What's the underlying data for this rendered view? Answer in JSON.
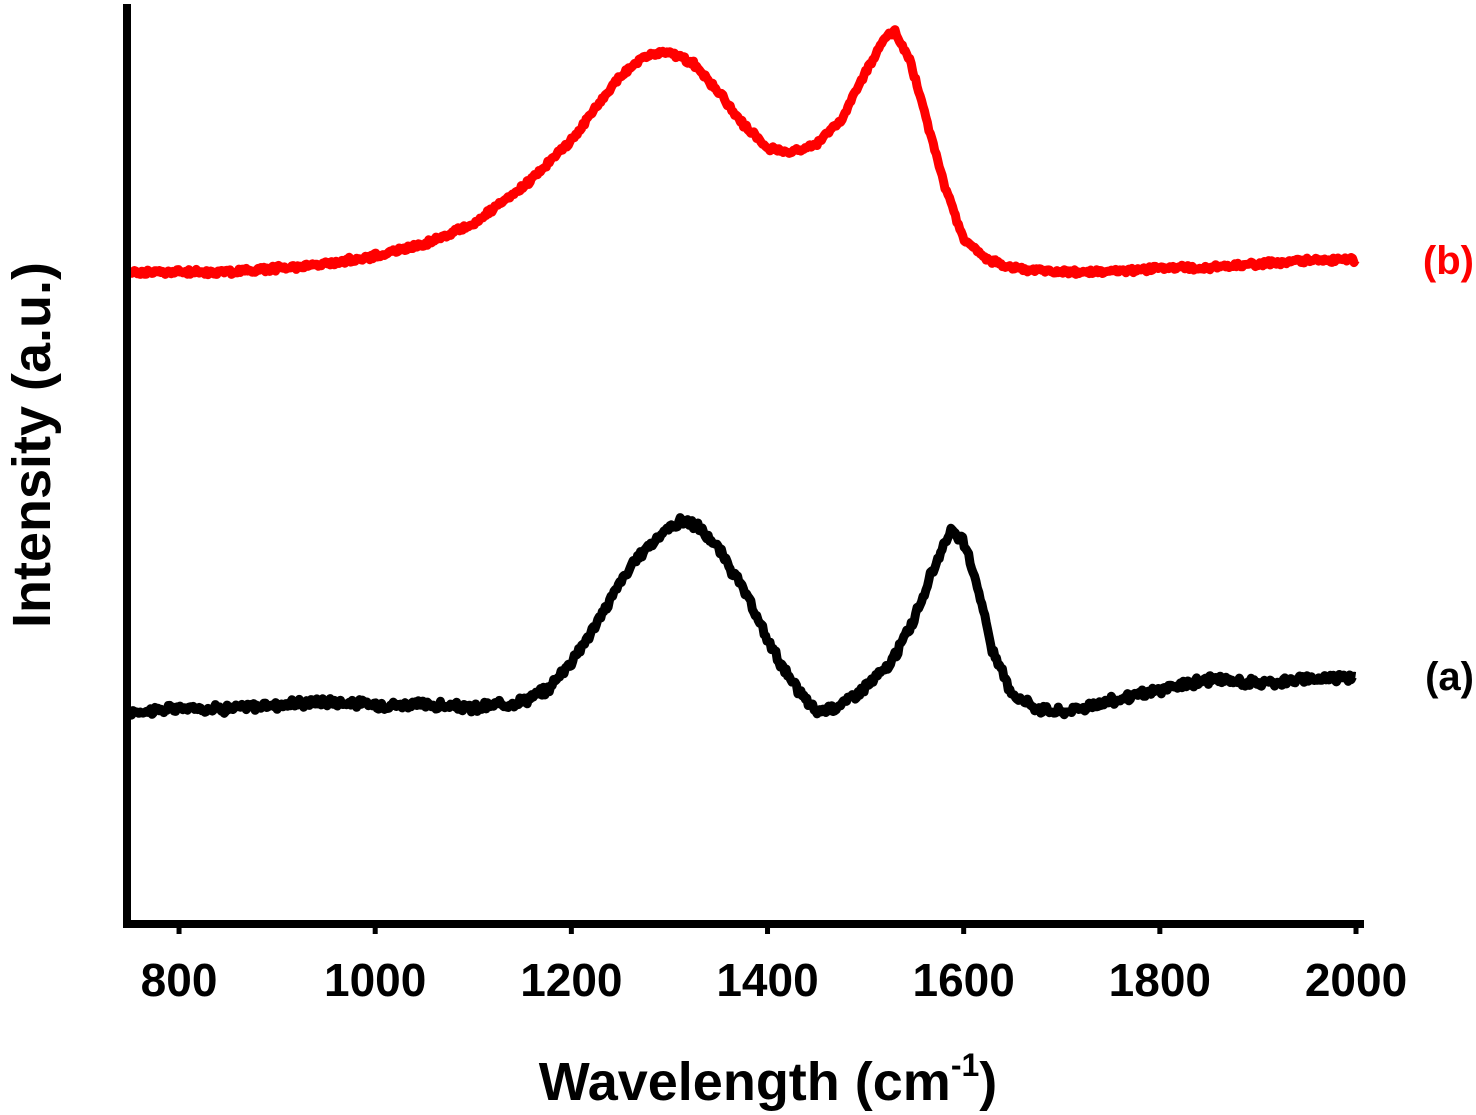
{
  "chart_data": {
    "type": "line",
    "xlabel": "Wavelength (cm",
    "xlabel_superscript": "-1",
    "xlabel_suffix": ")",
    "ylabel": "Intensity (a.u.)",
    "xlim": [
      750,
      2000
    ],
    "x_ticks": [
      "800",
      "1000",
      "1200",
      "1400",
      "1600",
      "1800",
      "2000"
    ],
    "y_ticks_shown": false,
    "grid": false,
    "series": [
      {
        "name": "(a)",
        "color": "#000000",
        "baseline": 0,
        "noise": 0.018,
        "x": [
          750,
          800,
          850,
          900,
          950,
          1000,
          1050,
          1100,
          1150,
          1175,
          1200,
          1225,
          1250,
          1275,
          1300,
          1315,
          1330,
          1350,
          1375,
          1400,
          1425,
          1450,
          1475,
          1500,
          1525,
          1550,
          1570,
          1585,
          1600,
          1615,
          1630,
          1650,
          1675,
          1700,
          1750,
          1800,
          1850,
          1900,
          1950,
          2000
        ],
        "y": [
          0.0,
          0.01,
          0.01,
          0.02,
          0.03,
          0.02,
          0.02,
          0.01,
          0.03,
          0.06,
          0.14,
          0.24,
          0.36,
          0.45,
          0.51,
          0.53,
          0.51,
          0.45,
          0.34,
          0.2,
          0.08,
          0.0,
          0.02,
          0.07,
          0.13,
          0.26,
          0.4,
          0.5,
          0.47,
          0.34,
          0.16,
          0.05,
          0.01,
          0.0,
          0.03,
          0.06,
          0.09,
          0.08,
          0.09,
          0.1
        ]
      },
      {
        "name": "(b)",
        "color": "#ff0000",
        "baseline": 1,
        "noise": 0.01,
        "x": [
          750,
          800,
          850,
          900,
          950,
          1000,
          1050,
          1100,
          1150,
          1200,
          1225,
          1250,
          1275,
          1300,
          1325,
          1350,
          1375,
          1400,
          1425,
          1450,
          1475,
          1500,
          1520,
          1530,
          1545,
          1560,
          1580,
          1600,
          1625,
          1650,
          1700,
          1750,
          1800,
          1850,
          1900,
          1950,
          2000
        ],
        "y": [
          0.0,
          0.0,
          0.0,
          0.01,
          0.02,
          0.04,
          0.07,
          0.12,
          0.21,
          0.33,
          0.41,
          0.49,
          0.54,
          0.55,
          0.52,
          0.45,
          0.37,
          0.31,
          0.3,
          0.32,
          0.38,
          0.5,
          0.59,
          0.6,
          0.53,
          0.4,
          0.22,
          0.08,
          0.03,
          0.01,
          0.0,
          0.0,
          0.01,
          0.01,
          0.02,
          0.03,
          0.03
        ]
      }
    ]
  }
}
